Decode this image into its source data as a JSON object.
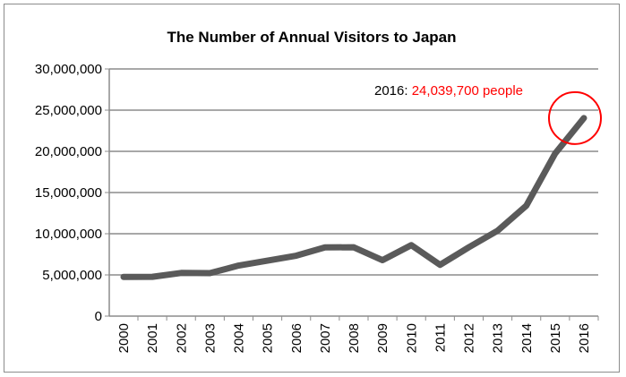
{
  "chart_data": {
    "type": "line",
    "title": "The Number of Annual Visitors to Japan",
    "xlabel": "",
    "ylabel": "",
    "categories": [
      "2000",
      "2001",
      "2002",
      "2003",
      "2004",
      "2005",
      "2006",
      "2007",
      "2008",
      "2009",
      "2010",
      "2011",
      "2012",
      "2013",
      "2014",
      "2015",
      "2016"
    ],
    "series": [
      {
        "name": "Visitors",
        "color": "#5a5a5a",
        "values": [
          4757146,
          4771555,
          5238963,
          5211725,
          6137905,
          6727926,
          7334077,
          8346969,
          8350835,
          6789658,
          8611175,
          6218752,
          8358105,
          10363904,
          13413467,
          19737409,
          24039700
        ]
      }
    ],
    "ylim": [
      0,
      30000000
    ],
    "yticks": [
      0,
      5000000,
      10000000,
      15000000,
      20000000,
      25000000,
      30000000
    ],
    "ytick_labels": [
      "0",
      "5,000,000",
      "10,000,000",
      "15,000,000",
      "20,000,000",
      "25,000,000",
      "30,000,000"
    ],
    "grid": true,
    "legend": "none",
    "annotation": {
      "prefix": "2016: ",
      "value_text": "24,039,700 people",
      "color": "#ff0000",
      "highlight_category": "2016"
    }
  }
}
